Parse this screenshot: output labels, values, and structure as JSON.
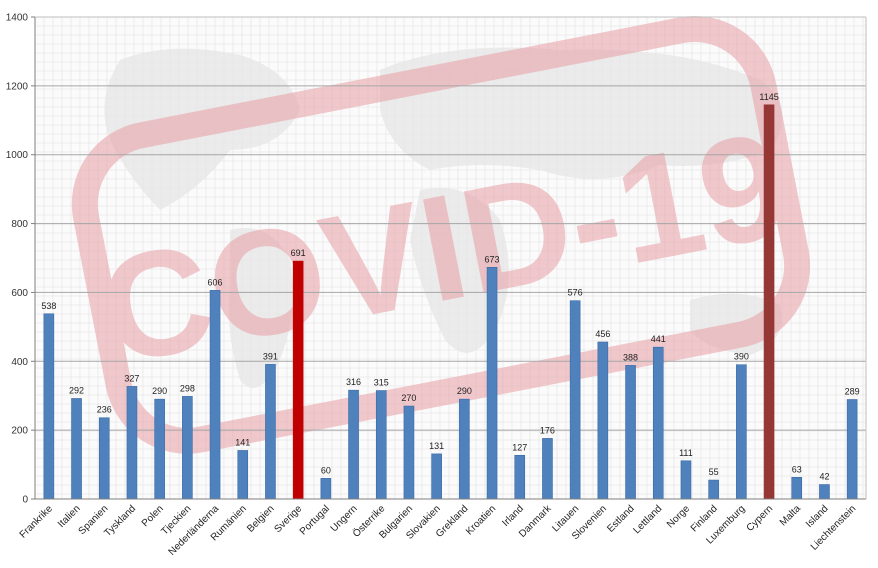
{
  "chart_data": {
    "type": "bar",
    "title": "",
    "xlabel": "",
    "ylabel": "",
    "ylim": [
      0,
      1400
    ],
    "yticks": [
      0,
      200,
      400,
      600,
      800,
      1000,
      1200,
      1400
    ],
    "grid": true,
    "legend": "none",
    "watermark_text": "COVID-19",
    "categories": [
      "Frankrike",
      "Italien",
      "Spanien",
      "Tyskland",
      "Polen",
      "Tjeckien",
      "Nederländerna",
      "Rumänien",
      "Belgien",
      "Sverige",
      "Portugal",
      "Ungern",
      "Österrike",
      "Bulgarien",
      "Slovakien",
      "Grekland",
      "Kroatien",
      "Irland",
      "Danmark",
      "Litauen",
      "Slovenien",
      "Estland",
      "Lettland",
      "Norge",
      "Finland",
      "Luxemburg",
      "Cypern",
      "Malta",
      "Island",
      "Liechtenstein"
    ],
    "values": [
      538,
      292,
      236,
      327,
      290,
      298,
      606,
      141,
      391,
      691,
      60,
      316,
      315,
      270,
      131,
      290,
      673,
      127,
      176,
      576,
      456,
      388,
      441,
      111,
      55,
      390,
      1145,
      63,
      42,
      289
    ],
    "colors": {
      "default": "#4f81bd",
      "default_edge": "#3a6aa6",
      "highlight": {
        "Sverige": "#c00000",
        "Cypern": "#953735"
      },
      "watermark": "#e8a0a6",
      "grid": "#a6a6a6"
    }
  }
}
